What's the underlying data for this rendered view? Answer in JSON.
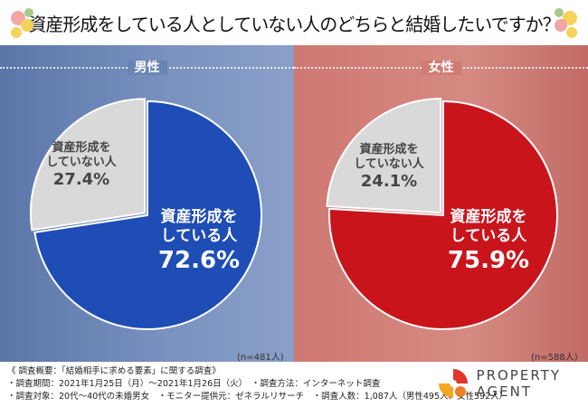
{
  "title": "資産形成をしている人としていない人のどちらと結婚したいですか？",
  "chart_data": [
    {
      "type": "pie",
      "title": "男性",
      "n_label": "(n=481人)",
      "slices": [
        {
          "label": "資産形成をしている人",
          "value": 72.6,
          "color": "#1e4db5"
        },
        {
          "label": "資産形成をしていない人",
          "value": 27.4,
          "color": "#d9d9d9"
        }
      ]
    },
    {
      "type": "pie",
      "title": "女性",
      "n_label": "(n=588人)",
      "slices": [
        {
          "label": "資産形成をしている人",
          "value": 75.9,
          "color": "#c9141c"
        },
        {
          "label": "資産形成をしていない人",
          "value": 24.1,
          "color": "#d9d9d9"
        }
      ]
    }
  ],
  "labels": {
    "has_l1": "資産形成を",
    "has_l2": "している人",
    "not_l1": "資産形成を",
    "not_l2": "していない人",
    "m_has": "72.6%",
    "m_not": "27.4%",
    "f_has": "75.9%",
    "f_not": "24.1%"
  },
  "footer": {
    "line1": "《 調査概要：「結婚相手に求める要素」に関する調査》",
    "line2": "・調査期間：2021年1月25日（月）～2021年1月26日（火）　・調査方法：インターネット調査",
    "line3": "・調査対象：20代～40代の未婚男女　・モニター提供元：ゼネラルリサーチ　・調査人数：1,087人（男性495人、女性592人）"
  },
  "logo": {
    "line1": "PROPERTY",
    "line2": "AGENT"
  }
}
